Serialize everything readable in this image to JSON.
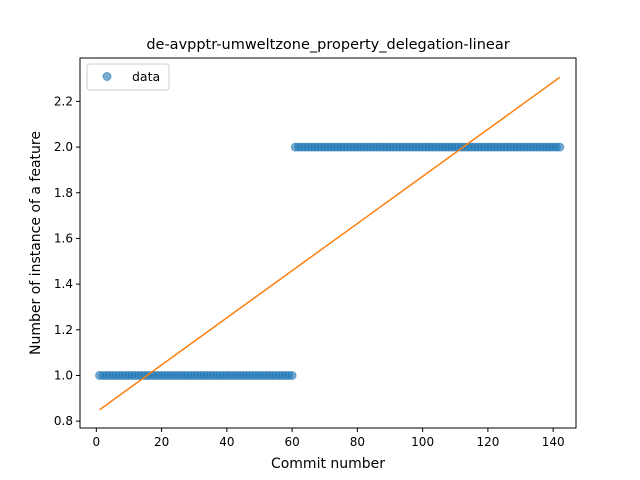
{
  "chart_data": {
    "type": "scatter",
    "title": "de-avpptr-umweltzone_property_delegation-linear",
    "xlabel": "Commit number",
    "ylabel": "Number of instance of a feature",
    "xlim": [
      -5,
      147
    ],
    "ylim": [
      0.77,
      2.39
    ],
    "xticks": [
      0,
      20,
      40,
      60,
      80,
      100,
      120,
      140
    ],
    "yticks": [
      0.8,
      1.0,
      1.2,
      1.4,
      1.6,
      1.8,
      2.0,
      2.2
    ],
    "ytick_labels": [
      "0.8",
      "1.0",
      "1.2",
      "1.4",
      "1.6",
      "1.8",
      "2.0",
      "2.2"
    ],
    "grid": false,
    "legend_position": "top-left",
    "series": [
      {
        "name": "data",
        "kind": "scatter",
        "color": "#1f77b4",
        "alpha": 0.6,
        "segments": [
          {
            "x_from": 1,
            "x_to": 60,
            "y": 1.0
          },
          {
            "x_from": 61,
            "x_to": 142,
            "y": 2.0
          }
        ]
      },
      {
        "kind": "line",
        "color": "#ff7f0e",
        "x": [
          1,
          142
        ],
        "y": [
          0.85,
          2.305
        ]
      }
    ]
  }
}
